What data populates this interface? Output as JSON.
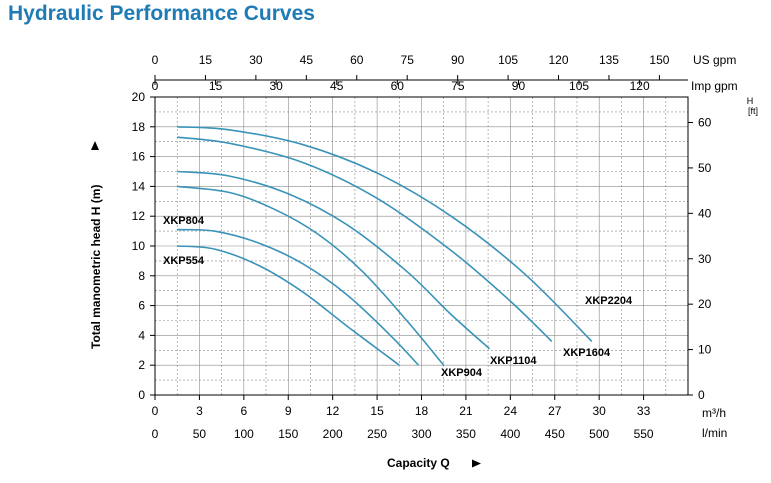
{
  "page_title": "Hydraulic Performance Curves",
  "chart_data": {
    "type": "line",
    "title": "Hydraulic Performance Curves",
    "xlabel": "Capacity Q",
    "ylabel": "Total manometric head H (m)",
    "xlim": [
      0,
      36
    ],
    "ylim": [
      0,
      20
    ],
    "grid": true,
    "series_color": "#3a93b8",
    "axes": {
      "bottom_m3h": {
        "unit": "m³/h",
        "ticks": [
          0,
          3,
          6,
          9,
          12,
          15,
          18,
          21,
          24,
          27,
          30,
          33
        ]
      },
      "bottom_lmin": {
        "unit": "l/min",
        "ticks": [
          0,
          50,
          100,
          150,
          200,
          250,
          300,
          350,
          400,
          450,
          500,
          550
        ]
      },
      "top_usgpm": {
        "unit": "US gpm",
        "ticks": [
          0,
          15,
          30,
          45,
          60,
          75,
          90,
          105,
          120,
          135,
          150
        ]
      },
      "top_impgpm": {
        "unit": "Imp gpm",
        "ticks": [
          0,
          15,
          30,
          45,
          60,
          75,
          90,
          105,
          120
        ]
      },
      "left_m": {
        "unit": "m",
        "ticks": [
          0,
          2,
          4,
          6,
          8,
          10,
          12,
          14,
          16,
          18,
          20
        ]
      },
      "right_ft": {
        "unit_top": "H",
        "unit_bottom": "[ft]",
        "ticks": [
          0,
          10,
          20,
          30,
          40,
          50,
          60
        ]
      }
    },
    "series": [
      {
        "name": "XKP554",
        "x": [
          1.5,
          4,
          7,
          10,
          13,
          16.5
        ],
        "y": [
          10.0,
          9.8,
          8.7,
          6.9,
          4.6,
          2.0
        ]
      },
      {
        "name": "XKP804",
        "x": [
          1.5,
          4,
          7,
          10,
          13,
          16,
          17.8
        ],
        "y": [
          11.1,
          11.0,
          10.2,
          8.8,
          6.7,
          3.9,
          2.0
        ]
      },
      {
        "name": "XKP904",
        "x": [
          1.5,
          5,
          8,
          11,
          14,
          17,
          19.5
        ],
        "y": [
          14.0,
          13.6,
          12.5,
          10.8,
          8.3,
          5.0,
          2.0
        ]
      },
      {
        "name": "XKP1104",
        "x": [
          1.5,
          5,
          9,
          13,
          17,
          20,
          22.6
        ],
        "y": [
          15.0,
          14.7,
          13.5,
          11.4,
          8.3,
          5.4,
          3.1
        ]
      },
      {
        "name": "XKP1604",
        "x": [
          1.5,
          5,
          10,
          15,
          20,
          24,
          26.8
        ],
        "y": [
          17.3,
          16.9,
          15.6,
          13.2,
          9.7,
          6.3,
          3.6
        ]
      },
      {
        "name": "XKP2204",
        "x": [
          1.5,
          5,
          10,
          15,
          20,
          25,
          29.5
        ],
        "y": [
          18.0,
          17.8,
          16.8,
          14.9,
          12.0,
          8.1,
          3.6
        ]
      }
    ],
    "annotations": [
      "XKP804",
      "XKP554",
      "XKP904",
      "XKP1104",
      "XKP1604",
      "XKP2204"
    ]
  }
}
